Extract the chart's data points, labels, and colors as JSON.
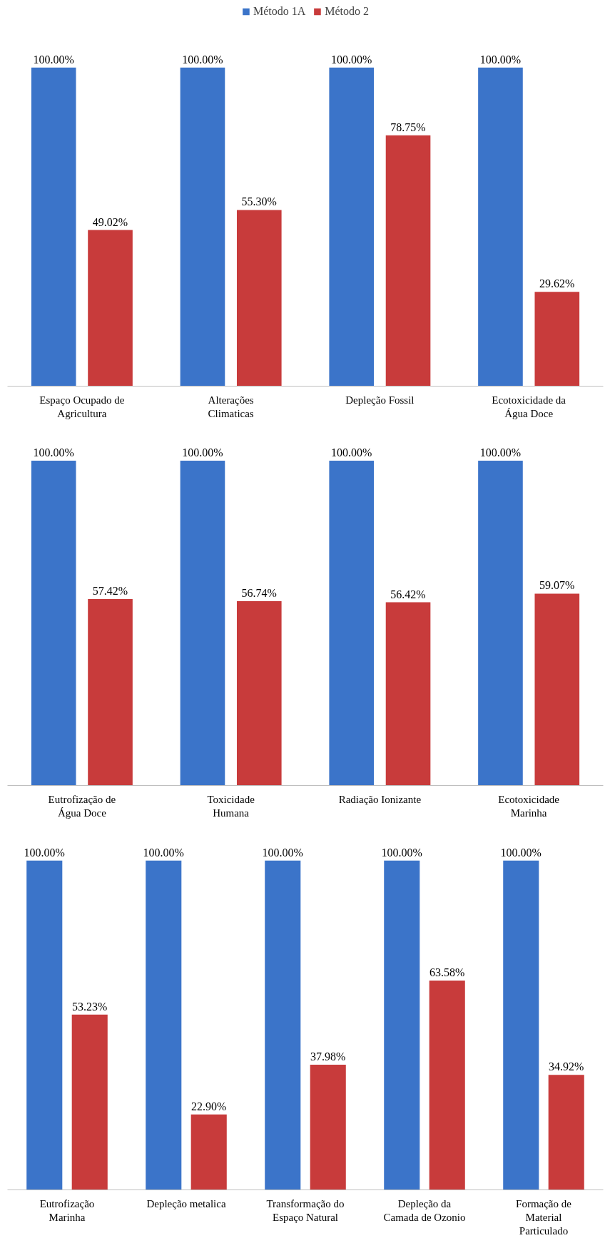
{
  "chart_data": [
    {
      "type": "bar",
      "categories": [
        "Espaço Ocupado de\nAgricultura",
        "Alterações\nClimaticas",
        "Depleção Fossil",
        "Ecotoxicidade da\nÁgua Doce"
      ],
      "legend": "top",
      "series": [
        {
          "name": "Método 1A",
          "color": "#3b74c9",
          "values": [
            100,
            100,
            100,
            100
          ],
          "value_labels": [
            "100.00%",
            "100.00%",
            "100.00%",
            "100.00%"
          ]
        },
        {
          "name": "Método 2",
          "color": "#c83b3b",
          "values": [
            49.02,
            55.3,
            78.75,
            29.62
          ],
          "value_labels": [
            "49.02%",
            "55.30%",
            "78.75%",
            "29.62%"
          ]
        }
      ]
    },
    {
      "type": "bar",
      "categories": [
        "Eutrofização de\nÁgua Doce",
        "Toxicidade\nHumana",
        "Radiação Ionizante",
        "Ecotoxicidade\nMarinha"
      ],
      "series": [
        {
          "color": "#3b74c9",
          "values": [
            100,
            100,
            100,
            100
          ],
          "value_labels": [
            "100.00%",
            "100.00%",
            "100.00%",
            "100.00%"
          ]
        },
        {
          "color": "#c83b3b",
          "values": [
            57.42,
            56.74,
            56.42,
            59.07
          ],
          "value_labels": [
            "57.42%",
            "56.74%",
            "56.42%",
            "59.07%"
          ]
        }
      ]
    },
    {
      "type": "bar",
      "categories": [
        "Eutrofização\nMarinha",
        "Depleção metalica",
        "Transformação do\nEspaço Natural",
        "Depleção da\nCamada de Ozonio",
        "Formação de\nMaterial\nParticulado"
      ],
      "series": [
        {
          "color": "#3b74c9",
          "values": [
            100,
            100,
            100,
            100,
            100
          ],
          "value_labels": [
            "100.00%",
            "100.00%",
            "100.00%",
            "100.00%",
            "100.00%"
          ]
        },
        {
          "color": "#c83b3b",
          "values": [
            53.23,
            22.9,
            37.98,
            63.58,
            34.92
          ],
          "value_labels": [
            "53.23%",
            "22.90%",
            "37.98%",
            "63.58%",
            "34.92%"
          ]
        }
      ]
    }
  ]
}
